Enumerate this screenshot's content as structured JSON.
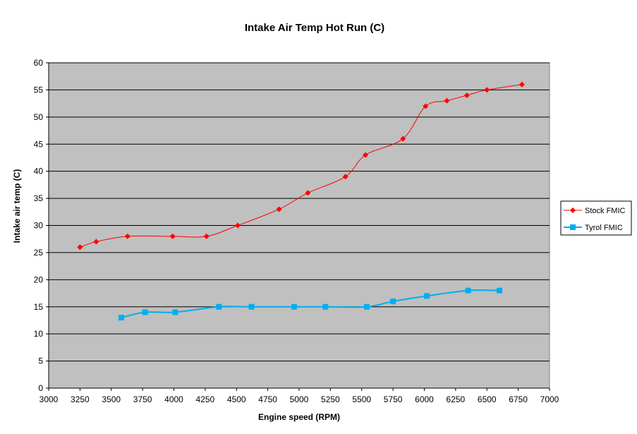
{
  "chart_data": {
    "type": "line",
    "title": "Intake Air  Temp Hot Run (C)",
    "xlabel": "Engine speed  (RPM)",
    "ylabel": "Intake air temp  (C)",
    "xlim": [
      3000,
      7000
    ],
    "ylim": [
      0,
      60
    ],
    "x_ticks": [
      3000,
      3250,
      3500,
      3750,
      4000,
      4250,
      4500,
      4750,
      5000,
      5250,
      5500,
      5750,
      6000,
      6250,
      6500,
      6750,
      7000
    ],
    "y_ticks": [
      0,
      5,
      10,
      15,
      20,
      25,
      30,
      35,
      40,
      45,
      50,
      55,
      60
    ],
    "grid": "horizontal",
    "plot_background": "#C0C0C0",
    "legend_position": "right",
    "series": [
      {
        "name": "Stock FMIC",
        "color": "#FF0000",
        "marker": "diamond",
        "x": [
          3250,
          3380,
          3630,
          3990,
          4260,
          4510,
          4840,
          5070,
          5370,
          5530,
          5830,
          6010,
          6180,
          6340,
          6500,
          6780
        ],
        "y": [
          26,
          27,
          28,
          28,
          28,
          30,
          33,
          36,
          39,
          43,
          46,
          52,
          53,
          54,
          55,
          56
        ]
      },
      {
        "name": "Tyrol FMIC",
        "color": "#00AEEF",
        "marker": "square",
        "x": [
          3580,
          3770,
          4010,
          4360,
          4620,
          4960,
          5210,
          5540,
          5750,
          6020,
          6350,
          6600
        ],
        "y": [
          13,
          14,
          14,
          15,
          15,
          15,
          15,
          15,
          16,
          17,
          18,
          18
        ]
      }
    ]
  }
}
